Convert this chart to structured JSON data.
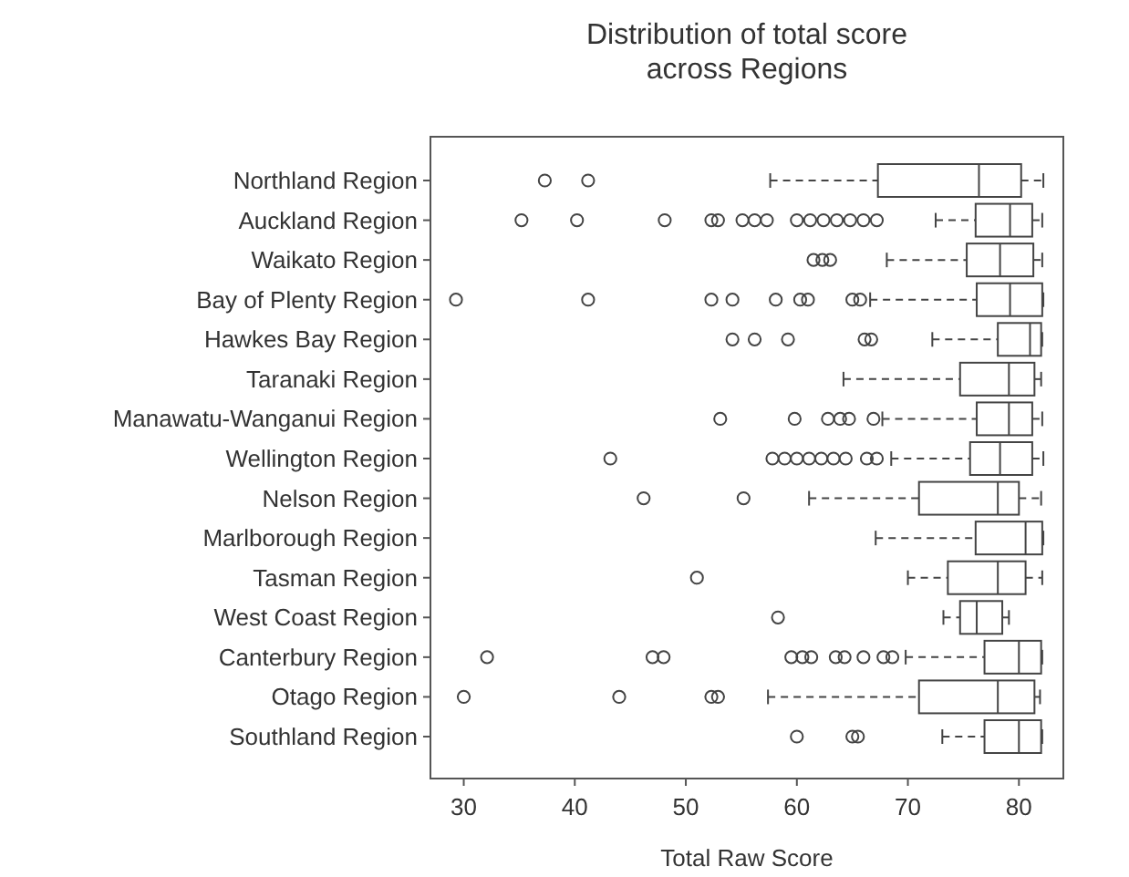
{
  "chart_data": {
    "type": "box",
    "orientation": "horizontal",
    "title": "Distribution of total score across Regions",
    "xlabel": "Total Raw Score",
    "categories": [
      "Northland Region",
      "Auckland Region",
      "Waikato Region",
      "Bay of Plenty Region",
      "Hawkes Bay Region",
      "Taranaki Region",
      "Manawatu-Wanganui Region",
      "Wellington Region",
      "Nelson Region",
      "Marlborough Region",
      "Tasman Region",
      "West Coast Region",
      "Canterbury Region",
      "Otago Region",
      "Southland Region"
    ],
    "xlim": [
      27,
      84
    ],
    "xticks": [
      30,
      40,
      50,
      60,
      70,
      80
    ],
    "grid": false,
    "boxes": [
      {
        "low": 57.6,
        "q1": 67.3,
        "median": 76.4,
        "q3": 80.2,
        "high": 82.2,
        "outliers": [
          37.3,
          41.2
        ]
      },
      {
        "low": 72.5,
        "q1": 76.1,
        "median": 79.2,
        "q3": 81.2,
        "high": 82.1,
        "outliers": [
          35.2,
          40.2,
          48.1,
          52.3,
          52.9,
          55.1,
          56.2,
          57.3,
          60,
          61.2,
          62.4,
          63.6,
          64.8,
          66,
          67.2
        ]
      },
      {
        "low": 68.1,
        "q1": 75.3,
        "median": 78.3,
        "q3": 81.3,
        "high": 82.1,
        "outliers": [
          61.5,
          62.3,
          63
        ]
      },
      {
        "low": 66.6,
        "q1": 76.2,
        "median": 79.2,
        "q3": 82.1,
        "high": 82.2,
        "outliers": [
          29.3,
          41.2,
          52.3,
          54.2,
          58.1,
          60.3,
          61,
          65,
          65.7
        ]
      },
      {
        "low": 72.2,
        "q1": 78.1,
        "median": 81,
        "q3": 82,
        "high": 82.1,
        "outliers": [
          54.2,
          56.2,
          59.2,
          66.1,
          66.7
        ]
      },
      {
        "low": 64.2,
        "q1": 74.7,
        "median": 79.1,
        "q3": 81.4,
        "high": 82
      },
      {
        "low": 67.7,
        "q1": 76.2,
        "median": 79.1,
        "q3": 81.2,
        "high": 82.1,
        "outliers": [
          53.1,
          59.8,
          62.8,
          63.9,
          64.7,
          66.9
        ]
      },
      {
        "low": 68.5,
        "q1": 75.6,
        "median": 78.3,
        "q3": 81.2,
        "high": 82.2,
        "outliers": [
          43.2,
          57.8,
          58.9,
          60,
          61.1,
          62.2,
          63.3,
          64.4,
          66.3,
          67.2
        ]
      },
      {
        "low": 61.1,
        "q1": 71,
        "median": 78.1,
        "q3": 80,
        "high": 82,
        "outliers": [
          46.2,
          55.2
        ]
      },
      {
        "low": 67.1,
        "q1": 76.1,
        "median": 80.6,
        "q3": 82.1,
        "high": 82.2
      },
      {
        "low": 70,
        "q1": 73.6,
        "median": 78.1,
        "q3": 80.6,
        "high": 82.1,
        "outliers": [
          51
        ]
      },
      {
        "low": 73.2,
        "q1": 74.7,
        "median": 76.2,
        "q3": 78.5,
        "high": 79.1,
        "outliers": [
          58.3
        ]
      },
      {
        "low": 69.8,
        "q1": 76.9,
        "median": 80,
        "q3": 82,
        "high": 82.1,
        "outliers": [
          32.1,
          47,
          48,
          59.5,
          60.5,
          61.3,
          63.5,
          64.3,
          66,
          67.8,
          68.6
        ]
      },
      {
        "low": 57.4,
        "q1": 71,
        "median": 78.1,
        "q3": 81.4,
        "high": 81.9,
        "outliers": [
          30,
          44,
          52.3,
          52.9
        ]
      },
      {
        "low": 73.1,
        "q1": 76.9,
        "median": 80,
        "q3": 82,
        "high": 82.1,
        "outliers": [
          60,
          65,
          65.5
        ]
      }
    ]
  }
}
